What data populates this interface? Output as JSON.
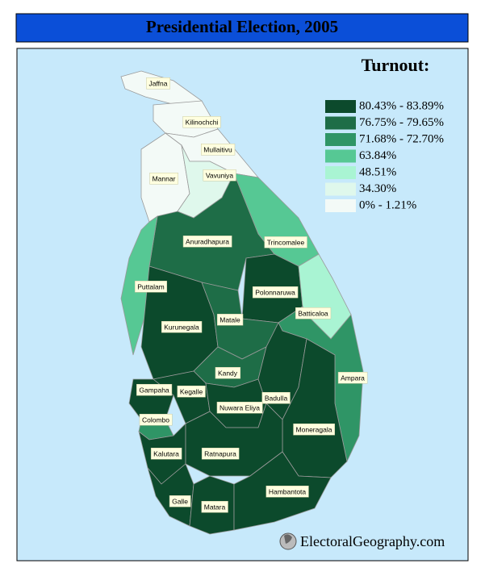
{
  "header": {
    "title": "Presidential Election, 2005"
  },
  "legend": {
    "title": "Turnout:",
    "items": [
      {
        "label": "80.43% - 83.89%",
        "color": "#0c4a2c"
      },
      {
        "label": "76.75% - 79.65%",
        "color": "#1e6d47"
      },
      {
        "label": "71.68% - 72.70%",
        "color": "#2f9566"
      },
      {
        "label": "63.84%",
        "color": "#56c894"
      },
      {
        "label": "48.51%",
        "color": "#a9f4d3"
      },
      {
        "label": "34.30%",
        "color": "#dff8ec"
      },
      {
        "label": "0% - 1.21%",
        "color": "#f3faf7"
      }
    ]
  },
  "districts": [
    {
      "name": "Jaffna",
      "class": 6
    },
    {
      "name": "Kilinochchi",
      "class": 6
    },
    {
      "name": "Mullaitivu",
      "class": 6
    },
    {
      "name": "Mannar",
      "class": 6
    },
    {
      "name": "Vavuniya",
      "class": 5
    },
    {
      "name": "Trincomalee",
      "class": 3
    },
    {
      "name": "Anuradhapura",
      "class": 1
    },
    {
      "name": "Puttalam",
      "class": 3
    },
    {
      "name": "Polonnaruwa",
      "class": 0
    },
    {
      "name": "Batticaloa",
      "class": 4
    },
    {
      "name": "Kurunegala",
      "class": 0
    },
    {
      "name": "Matale",
      "class": 1
    },
    {
      "name": "Ampara",
      "class": 2
    },
    {
      "name": "Kandy",
      "class": 1
    },
    {
      "name": "Badulla",
      "class": 0
    },
    {
      "name": "Moneragala",
      "class": 0
    },
    {
      "name": "Gampaha",
      "class": 0
    },
    {
      "name": "Kegalle",
      "class": 0
    },
    {
      "name": "Nuwara Eliya",
      "class": 0
    },
    {
      "name": "Colombo",
      "class": 2
    },
    {
      "name": "Kalutara",
      "class": 0
    },
    {
      "name": "Ratnapura",
      "class": 0
    },
    {
      "name": "Galle",
      "class": 0
    },
    {
      "name": "Matara",
      "class": 0
    },
    {
      "name": "Hambantota",
      "class": 0
    }
  ],
  "footer": {
    "text": "ElectoralGeography.com"
  }
}
